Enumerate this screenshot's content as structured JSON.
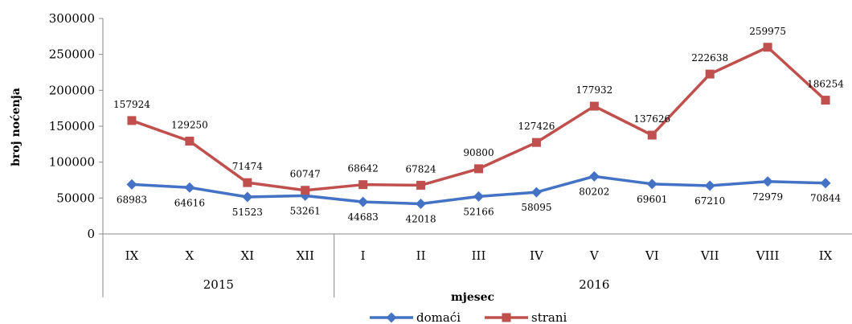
{
  "chart_data": {
    "type": "line",
    "xlabel": "mjesec",
    "ylabel": "broj noćenja",
    "ylim": [
      0,
      300000
    ],
    "yticks": [
      0,
      50000,
      100000,
      150000,
      200000,
      250000,
      300000
    ],
    "ytick_labels": [
      "0",
      "50000",
      "100000",
      "150000",
      "200000",
      "250000",
      "300000"
    ],
    "categories": [
      "IX",
      "X",
      "XI",
      "XII",
      "I",
      "II",
      "III",
      "IV",
      "V",
      "VI",
      "VII",
      "VIII",
      "IX"
    ],
    "groups": [
      {
        "label": "2015",
        "count": 4
      },
      {
        "label": "2016",
        "count": 9
      }
    ],
    "series": [
      {
        "name": "domaći",
        "color": "#4472C4",
        "marker": "diamond",
        "values": [
          68983,
          64616,
          51523,
          53261,
          44683,
          42018,
          52166,
          58095,
          80202,
          69601,
          67210,
          72979,
          70844
        ]
      },
      {
        "name": "strani",
        "color": "#C0504D",
        "marker": "square",
        "values": [
          157924,
          129250,
          71474,
          60747,
          68642,
          67824,
          90800,
          127426,
          177932,
          137626,
          222638,
          259975,
          186254
        ]
      }
    ],
    "legend_position": "bottom",
    "grid": false
  }
}
